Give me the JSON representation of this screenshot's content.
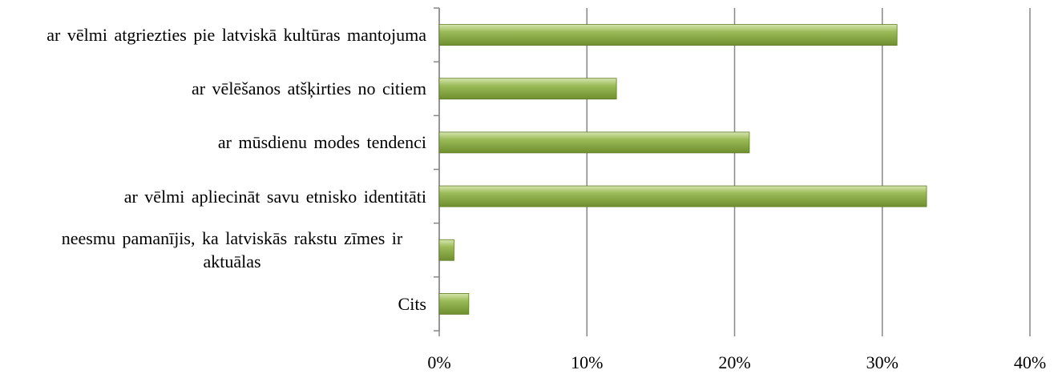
{
  "chart_data": {
    "type": "bar",
    "orientation": "horizontal",
    "categories": [
      "ar vēlmi atgriezties pie latviskā kultūras mantojuma",
      "ar vēlēšanos atšķirties no citiem",
      "ar mūsdienu modes tendenci",
      "ar vēlmi apliecināt savu etnisko identitāti",
      "neesmu pamanījis, ka latviskās rakstu zīmes ir aktuālas",
      "Cits"
    ],
    "values": [
      31,
      12,
      21,
      33,
      1,
      2
    ],
    "color": "#9bbb59",
    "xlim": [
      0,
      40
    ],
    "xticks": [
      {
        "value": 0,
        "label": "0%"
      },
      {
        "value": 10,
        "label": "10%"
      },
      {
        "value": 20,
        "label": "20%"
      },
      {
        "value": 30,
        "label": "30%"
      },
      {
        "value": 40,
        "label": "40%"
      }
    ],
    "grid": true
  }
}
